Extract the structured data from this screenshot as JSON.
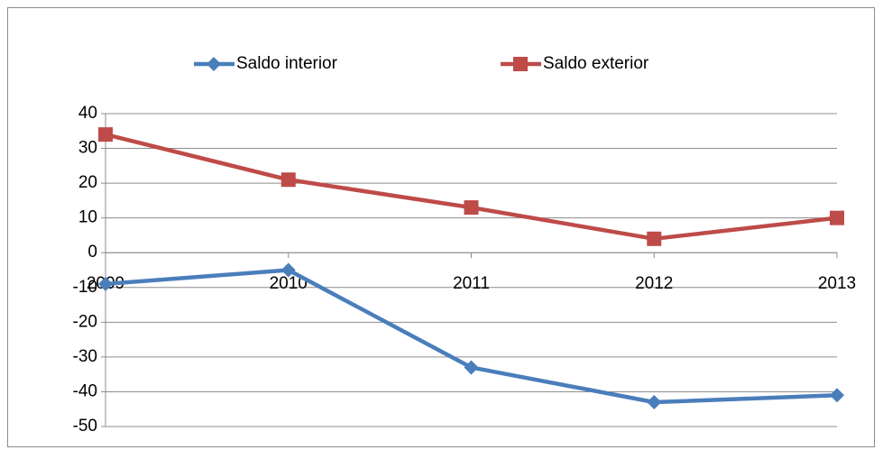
{
  "chart_data": {
    "type": "line",
    "categories": [
      "2009",
      "2010",
      "2011",
      "2012",
      "2013"
    ],
    "series": [
      {
        "name": "Saldo interior",
        "color": "#4a7ebb",
        "marker": "diamond",
        "values": [
          -9,
          -5,
          -33,
          -43,
          -41
        ]
      },
      {
        "name": "Saldo exterior",
        "color": "#be4b48",
        "marker": "square",
        "values": [
          34,
          21,
          13,
          4,
          10
        ]
      }
    ],
    "ylim": [
      -50,
      40
    ],
    "yticks": [
      -50,
      -40,
      -30,
      -20,
      -10,
      0,
      10,
      20,
      30,
      40
    ],
    "grid": true,
    "legend": "top"
  }
}
